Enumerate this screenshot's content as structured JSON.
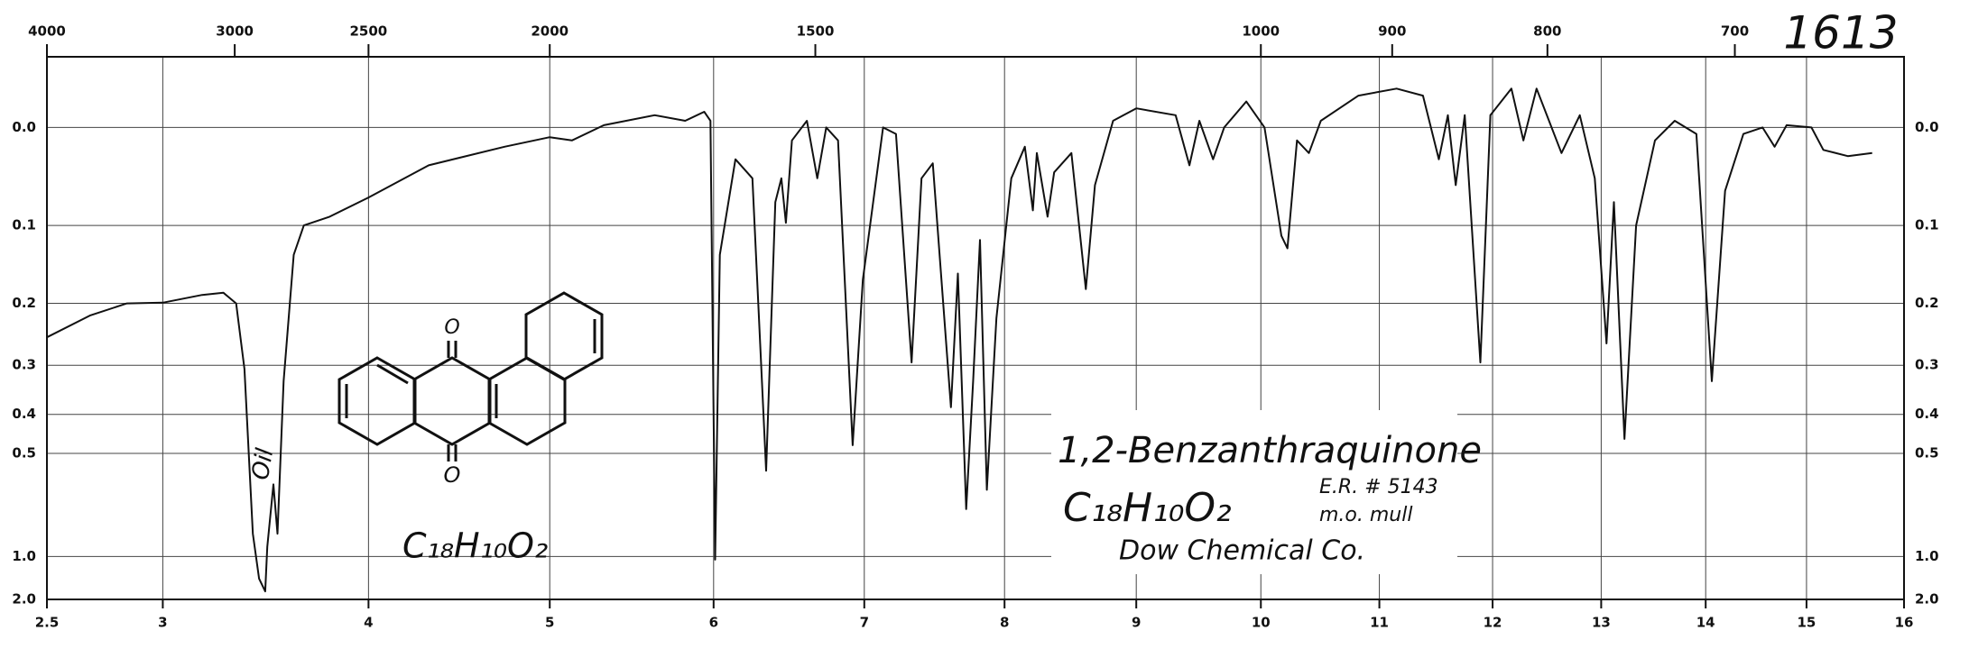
{
  "chart_data": {
    "type": "line",
    "title": "1613",
    "x": [
      2.5,
      2.68,
      2.84,
      3.0,
      3.18,
      3.28,
      3.34,
      3.38,
      3.42,
      3.45,
      3.48,
      3.49,
      3.52,
      3.54,
      3.57,
      3.62,
      3.67,
      3.8,
      4.0,
      4.32,
      4.74,
      5.0,
      5.13,
      5.32,
      5.63,
      5.82,
      5.94,
      5.98,
      6.01,
      6.04,
      6.14,
      6.25,
      6.34,
      6.4,
      6.44,
      6.47,
      6.51,
      6.61,
      6.68,
      6.74,
      6.82,
      6.92,
      6.99,
      7.04,
      7.13,
      7.22,
      7.33,
      7.4,
      7.48,
      7.61,
      7.66,
      7.72,
      7.77,
      7.82,
      7.87,
      7.94,
      8.05,
      8.15,
      8.21,
      8.24,
      8.32,
      8.37,
      8.5,
      8.61,
      8.68,
      8.82,
      9.0,
      9.31,
      9.42,
      9.5,
      9.61,
      9.7,
      9.88,
      10.03,
      10.17,
      10.22,
      10.3,
      10.4,
      10.5,
      10.82,
      11.15,
      11.38,
      11.52,
      11.6,
      11.67,
      11.75,
      11.89,
      11.98,
      12.17,
      12.28,
      12.4,
      12.63,
      12.8,
      12.94,
      13.05,
      13.12,
      13.22,
      13.33,
      13.51,
      13.7,
      13.91,
      14.06,
      14.19,
      14.37,
      14.56,
      14.68,
      14.8,
      15.05,
      15.17,
      15.42,
      15.67
    ],
    "values": [
      0.252,
      0.218,
      0.2,
      0.199,
      0.188,
      0.185,
      0.2,
      0.307,
      0.83,
      1.27,
      1.57,
      0.92,
      0.6,
      0.83,
      0.33,
      0.135,
      0.1,
      0.09,
      0.069,
      0.036,
      0.018,
      0.009,
      0.012,
      -0.002,
      -0.011,
      -0.006,
      -0.014,
      -0.006,
      1.03,
      0.135,
      0.03,
      0.049,
      0.553,
      0.074,
      0.049,
      0.097,
      0.012,
      -0.006,
      0.049,
      0,
      0.012,
      0.477,
      0.167,
      0.1,
      0,
      0.006,
      0.295,
      0.049,
      0.034,
      0.384,
      0.159,
      0.7,
      0.33,
      0.117,
      0.62,
      0.222,
      0.049,
      0.018,
      0.083,
      0.024,
      0.09,
      0.043,
      0.024,
      0.18,
      0.056,
      -0.006,
      -0.017,
      -0.011,
      0.036,
      -0.006,
      0.03,
      0,
      -0.023,
      0,
      0.112,
      0.127,
      0.012,
      0.024,
      -0.006,
      -0.028,
      -0.034,
      -0.028,
      0.03,
      -0.011,
      0.056,
      -0.011,
      0.295,
      -0.011,
      -0.034,
      0.012,
      -0.034,
      0.024,
      -0.011,
      0.049,
      0.262,
      0.074,
      0.46,
      0.1,
      0.012,
      -0.006,
      0.006,
      0.33,
      0.062,
      0.006,
      0,
      0.018,
      -0.002,
      0,
      0.021,
      0.027,
      0.024
    ],
    "color": "#111111",
    "xscale": "sqrt",
    "yscale": "transmittance",
    "grid": true,
    "xlim": [
      2.5,
      16
    ],
    "xticks": [
      2.5,
      3,
      4,
      5,
      6,
      7,
      8,
      9,
      10,
      11,
      12,
      13,
      14,
      15,
      16
    ],
    "x2ticks": [
      4000,
      3000,
      2500,
      2000,
      1500,
      1000,
      900,
      800,
      700
    ],
    "ylim": [
      -0.06,
      2
    ],
    "yticks": [
      {
        "value": 0,
        "label": "0.0"
      },
      0.1,
      0.2,
      0.3,
      0.4,
      0.5,
      {
        "value": 1,
        "label": "1.0"
      },
      {
        "value": 2,
        "label": "2.0"
      }
    ],
    "annotations": [
      "1,2-Benzanthraquinone",
      "C₁₈H₁₀O₂",
      "E.R. # 5143",
      "m.o. mull",
      "Dow Chemical Co.",
      "Oil",
      "C₁₈H₁₀O₂",
      "O",
      "O"
    ]
  }
}
